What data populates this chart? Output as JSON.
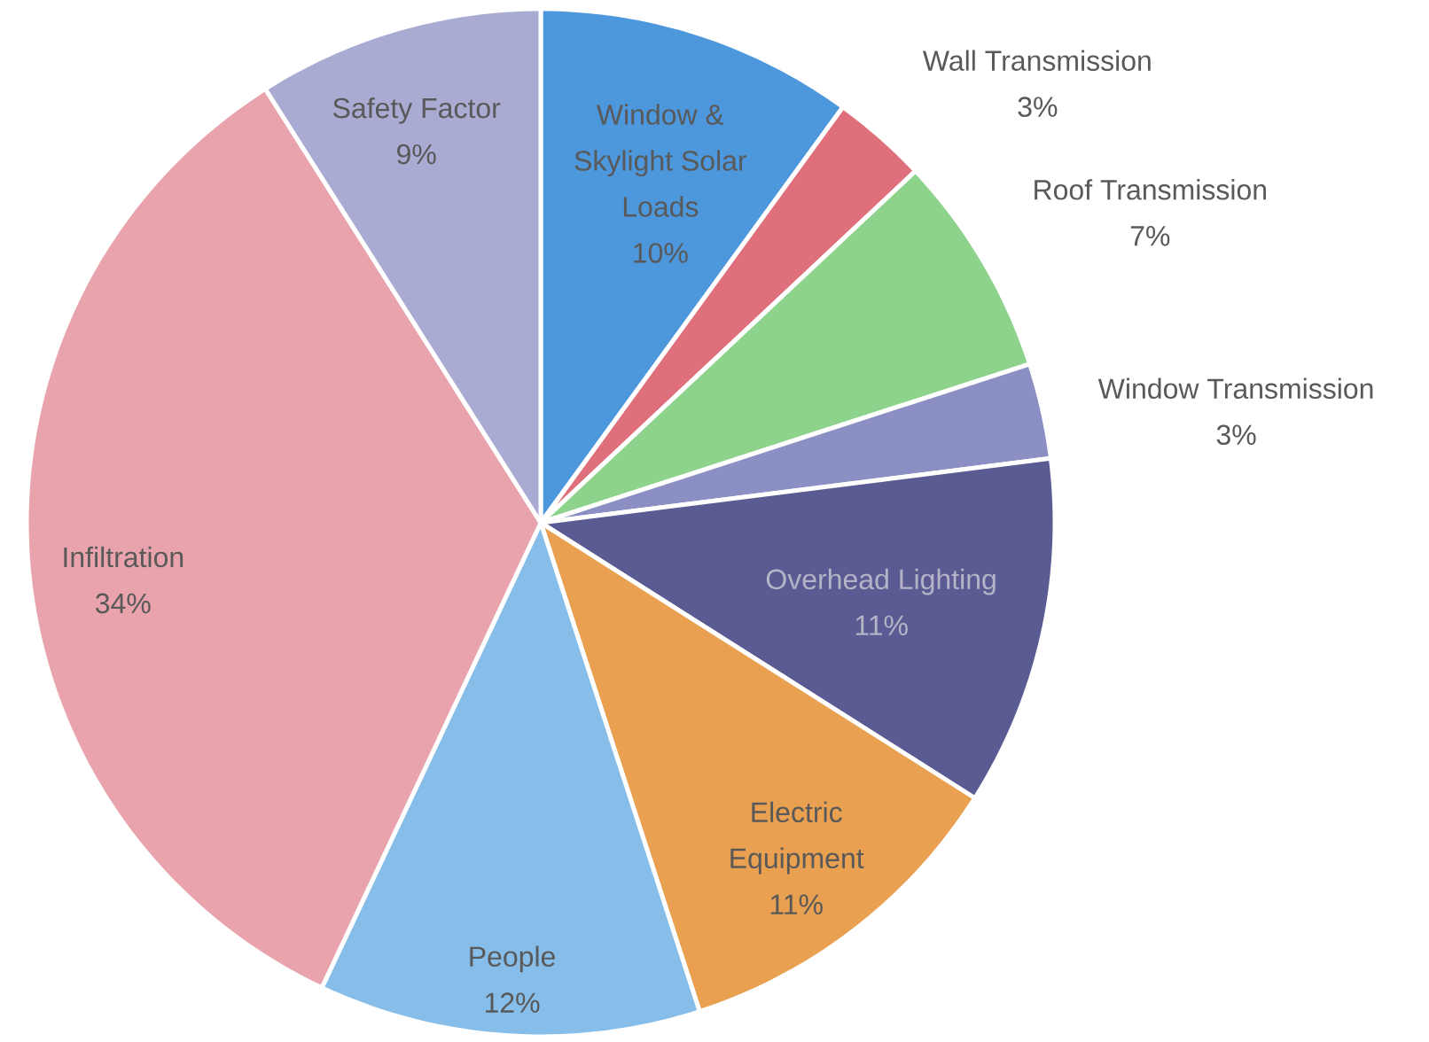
{
  "chart_data": {
    "type": "pie",
    "categories": [
      "Window & Skylight Solar Loads",
      "Wall Transmission",
      "Roof Transmission",
      "Window Transmission",
      "Overhead Lighting",
      "Electric Equipment",
      "People",
      "Infiltration",
      "Safety Factor"
    ],
    "values": [
      10,
      3,
      7,
      3,
      11,
      11,
      12,
      34,
      9
    ],
    "colors": [
      "#4d97dc",
      "#e06f7c",
      "#8ed38c",
      "#8b8fc3",
      "#5b5b94",
      "#e9a050",
      "#86bde9",
      "#e9a3ad",
      "#a9abd2"
    ],
    "value_labels": [
      "10%",
      "3%",
      "7%",
      "3%",
      "11%",
      "11%",
      "12%",
      "34%",
      "9%"
    ]
  }
}
